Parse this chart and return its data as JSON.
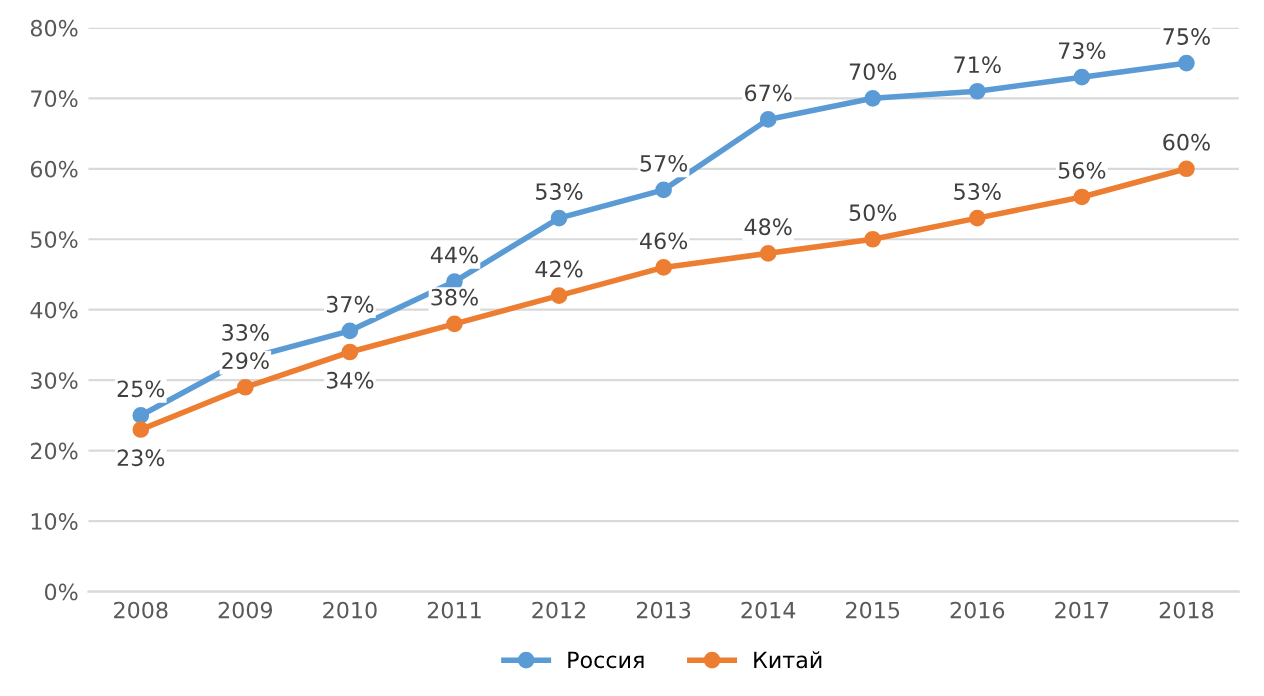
{
  "chart_data": {
    "type": "line",
    "categories": [
      "2008",
      "2009",
      "2010",
      "2011",
      "2012",
      "2013",
      "2014",
      "2015",
      "2016",
      "2017",
      "2018"
    ],
    "series": [
      {
        "name": "Россия",
        "color": "#5b9bd5",
        "values": [
          25,
          33,
          37,
          44,
          53,
          57,
          67,
          70,
          71,
          73,
          75
        ],
        "value_labels": [
          "25%",
          "33%",
          "37%",
          "44%",
          "53%",
          "57%",
          "67%",
          "70%",
          "71%",
          "73%",
          "75%"
        ]
      },
      {
        "name": "Китай",
        "color": "#ed7d31",
        "values": [
          23,
          29,
          34,
          38,
          42,
          46,
          48,
          50,
          53,
          56,
          60
        ],
        "value_labels": [
          "23%",
          "29%",
          "34%",
          "38%",
          "42%",
          "46%",
          "48%",
          "50%",
          "53%",
          "56%",
          "60%"
        ]
      }
    ],
    "ylim": [
      0,
      80
    ],
    "yticks": [
      {
        "value": 0,
        "label": "0%"
      },
      {
        "value": 10,
        "label": "10%"
      },
      {
        "value": 20,
        "label": "20%"
      },
      {
        "value": 30,
        "label": "30%"
      },
      {
        "value": 40,
        "label": "40%"
      },
      {
        "value": 50,
        "label": "50%"
      },
      {
        "value": 60,
        "label": "60%"
      },
      {
        "value": 70,
        "label": "70%"
      },
      {
        "value": 80,
        "label": "80%"
      }
    ],
    "grid": "y",
    "legend": "bottom",
    "marker": "circle",
    "line_style": "solid"
  }
}
